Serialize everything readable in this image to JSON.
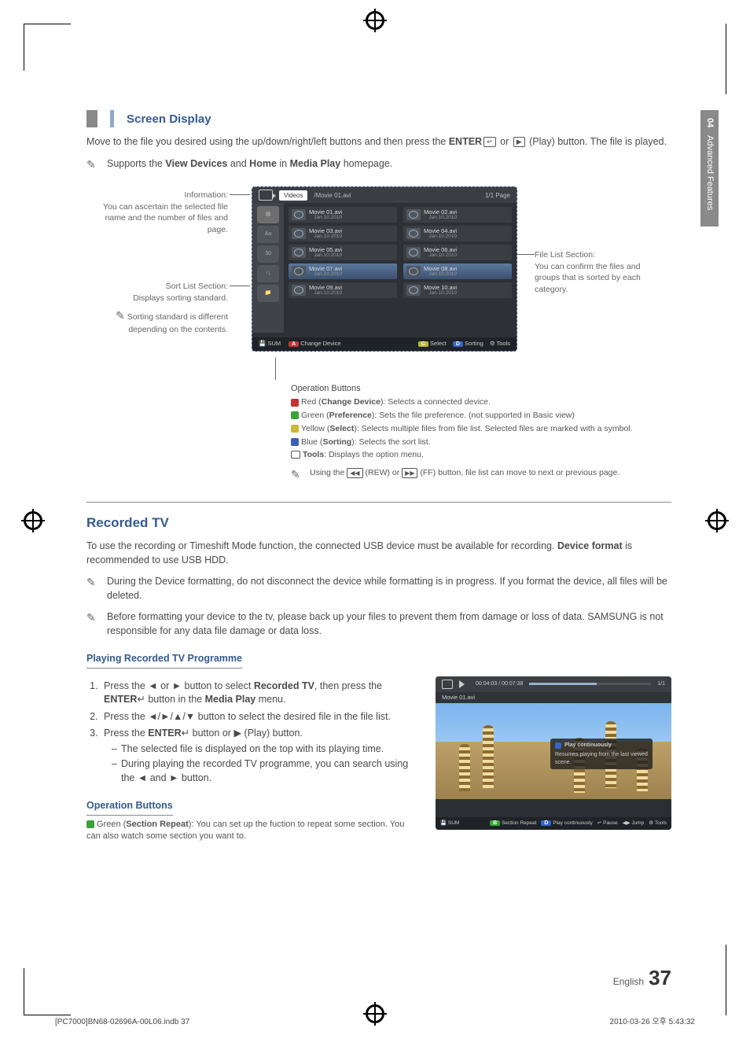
{
  "sidebar": {
    "chapter": "04",
    "label": "Advanced Features"
  },
  "section1": {
    "title": "Screen Display",
    "intro_pre": "Move to the file you desired using the up/down/right/left buttons and then press the ",
    "intro_enter": "ENTER",
    "intro_mid": " or ",
    "intro_play": "▶",
    "intro_post": " (Play) button. The file is played.",
    "note_supports_pre": "Supports the ",
    "note_supports_vd": "View Devices",
    "note_supports_and": " and ",
    "note_supports_home": "Home",
    "note_supports_in": " in ",
    "note_supports_mp": "Media Play",
    "note_supports_post": " homepage."
  },
  "callouts": {
    "info_label": "Information:",
    "info_text": "You can ascertain the selected file name and the number of files and page.",
    "sort_label": "Sort List Section:",
    "sort_text": "Displays sorting standard.",
    "sort_note": "Sorting standard is different depending on the contents.",
    "files_label": "File List Section:",
    "files_text": "You can confirm the files and groups that is sorted by each category."
  },
  "player": {
    "videos_label": "Videos",
    "path": "/Movie 01.avi",
    "page": "1/1 Page",
    "files": [
      {
        "n": "Movie 01.avi",
        "d": "Jan.10.2010"
      },
      {
        "n": "Movie 02.avi",
        "d": "Jan.10.2010"
      },
      {
        "n": "Movie 03.avi",
        "d": "Jan.10.2010"
      },
      {
        "n": "Movie 04.avi",
        "d": "Jan.10.2010"
      },
      {
        "n": "Movie 05.avi",
        "d": "Jan.10.2010"
      },
      {
        "n": "Movie 06.avi",
        "d": "Jan.10.2010"
      },
      {
        "n": "Movie 07.avi",
        "d": "Jan.10.2010"
      },
      {
        "n": "Movie 08.avi",
        "d": "Jan.10.2010"
      },
      {
        "n": "Movie 09.avi",
        "d": "Jan.10.2010"
      },
      {
        "n": "Movie 10.avi",
        "d": "Jan.10.2010"
      }
    ],
    "foot_sum": "SUM",
    "foot_change": "Change Device",
    "foot_select": "Select",
    "foot_sorting": "Sorting",
    "foot_tools": "Tools"
  },
  "opbuttons": {
    "title": "Operation Buttons",
    "a_pre": "Red (",
    "a_bold": "Change Device",
    "a_post": "): Selects a connected device.",
    "b_pre": "Green (",
    "b_bold": "Preference",
    "b_post": "): Sets the file preference. (not supported in Basic view)",
    "c_pre": "Yellow (",
    "c_bold": "Select",
    "c_post": "): Selects multiple files from file list. Selected files are marked with a symbol.",
    "d_pre": "Blue (",
    "d_bold": "Sorting",
    "d_post": "): Selects the sort list.",
    "tools_bold": "Tools",
    "tools_post": ": Displays the option menu.",
    "note_pre": "Using the ",
    "note_rew": "◀◀",
    "note_rew_lbl": " (REW) or ",
    "note_ff": "▶▶",
    "note_post": " (FF) button, file list can move to next or previous page."
  },
  "section2": {
    "title": "Recorded TV",
    "intro_pre": "To use the recording or Timeshift Mode function, the connected USB device must be available for recording. ",
    "intro_bold": "Device format",
    "intro_post": " is recommended to use USB HDD.",
    "note1": "During the Device formatting, do not disconnect the device while formatting is in progress. If you format the device, all files will be deleted.",
    "note2": "Before formatting your device to the tv, please back up your files to prevent them from damage or loss of data. SAMSUNG is not responsible for any data file damage or data loss.",
    "subheading": "Playing Recorded TV Programme",
    "step1_pre": "Press the ◄ or ► button to select ",
    "step1_bold": "Recorded TV",
    "step1_mid": ", then press the ",
    "step1_enter": "ENTER",
    "step1_post": " button in the ",
    "step1_mp": "Media Play",
    "step1_end": " menu.",
    "step2": "Press the ◄/►/▲/▼ button to select the desired file in the file list.",
    "step3_pre": "Press the ",
    "step3_enter": "ENTER",
    "step3_mid": " button or ",
    "step3_play": "▶",
    "step3_post": " (Play) button.",
    "step3a": "The selected file is displayed on the top with its playing time.",
    "step3b": "During playing the recorded TV programme, you can search using the ◄ and ► button.",
    "opbuttons_title": "Operation Buttons",
    "opbuttons_text_pre": "Green (",
    "opbuttons_text_bold": "Section Repeat",
    "opbuttons_text_post": "): You can set up the fuction to repeat some section. You can also watch some section you want to."
  },
  "playbox": {
    "time": "00:04:03 / 00:07:38",
    "page": "1/1",
    "filename": "Movie 01.avi",
    "overlay_title": "Play continuously",
    "overlay_text": "Resumes playing from the last viewed scene.",
    "foot_sum": "SUM",
    "foot_sr": "Section Repeat",
    "foot_pc": "Play continuously",
    "foot_pause": "Pause",
    "foot_jump": "Jump",
    "foot_tools": "Tools"
  },
  "footer": {
    "lang": "English",
    "page": "37"
  },
  "printfoot": {
    "left": "[PC7000]BN68-02696A-00L06.indb   37",
    "right": "2010-03-26   오후 5:43:32"
  }
}
